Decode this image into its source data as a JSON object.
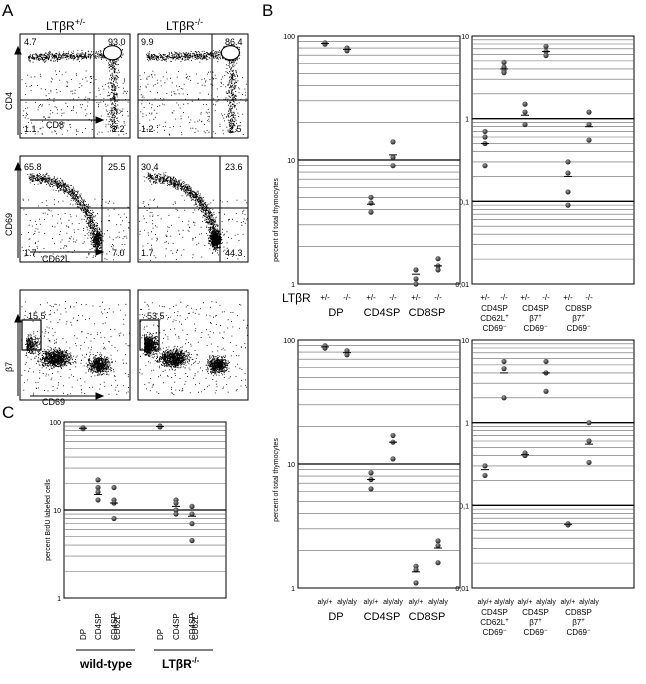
{
  "panel_letters": {
    "a": "A",
    "b": "B",
    "c": "C"
  },
  "panelA": {
    "col_headers": [
      "LTβR",
      "+/-",
      "LTβR",
      "-/-"
    ],
    "row1": {
      "ylabel": "CD4",
      "xlabel": "CD8",
      "plus": [
        "4.7",
        "93.0",
        "1.1",
        "1.2"
      ],
      "minus": [
        "9.9",
        "86.4",
        "1.2",
        "2.5"
      ]
    },
    "row2": {
      "ylabel": "CD69",
      "xlabel": "CD62L",
      "plus": [
        "65.8",
        "25.5",
        "1.7",
        "7.0"
      ],
      "minus": [
        "30.4",
        "23.6",
        "1.7",
        "44.3"
      ]
    },
    "row3": {
      "ylabel": "β7",
      "xlabel": "CD69",
      "plus": [
        "15.5"
      ],
      "minus": [
        "53.5"
      ]
    }
  },
  "panelB": {
    "ylabel": "percent of total thymocytes",
    "row_label": "LTβR",
    "tl": {
      "geno": [
        "+/-",
        "-/-",
        "+/-",
        "-/-",
        "+/-",
        "-/-"
      ],
      "groups": [
        "DP",
        "CD4SP",
        "CD8SP"
      ],
      "yticks": [
        "100",
        "10",
        "1"
      ]
    },
    "tr": {
      "geno": [
        "+/-",
        "-/-",
        "+/-",
        "-/-",
        "+/-",
        "-/-"
      ],
      "groups": [
        [
          "CD4SP",
          "CD62L",
          "CD69"
        ],
        [
          "CD4SP",
          "β7",
          "CD69"
        ],
        [
          "CD8SP",
          "β7",
          "CD69"
        ]
      ],
      "yticks": [
        "10",
        "1",
        "0,1",
        "0,01"
      ]
    },
    "bl": {
      "geno": [
        "aly/+",
        "aly/aly",
        "aly/+",
        "aly/aly",
        "aly/+",
        "aly/aly"
      ],
      "groups": [
        "DP",
        "CD4SP",
        "CD8SP"
      ],
      "yticks": [
        "100",
        "10",
        "1"
      ]
    },
    "br": {
      "geno": [
        "aly/+",
        "aly/aly",
        "aly/+",
        "aly/aly",
        "aly/+",
        "aly/aly"
      ],
      "groups": [
        [
          "CD4SP",
          "CD62L",
          "CD69"
        ],
        [
          "CD4SP",
          "β7",
          "CD69"
        ],
        [
          "CD8SP",
          "β7",
          "CD69"
        ]
      ],
      "yticks": [
        "10",
        "1",
        "0,1",
        "0,01"
      ]
    }
  },
  "panelC": {
    "ylabel": "percent BrdU labeled cells",
    "yticks": [
      "100",
      "10",
      "1"
    ],
    "xcats": [
      "DP",
      "CD4SP",
      "CD4SP",
      "DP",
      "CD4SP",
      "CD4SP"
    ],
    "sup_plus": "+",
    "cd62l": "CD62L",
    "groups": [
      "wild-type",
      "LTβR"
    ]
  },
  "colors": {
    "dot": "#3a3a3a",
    "line": "#000000",
    "grid": "#555555"
  }
}
